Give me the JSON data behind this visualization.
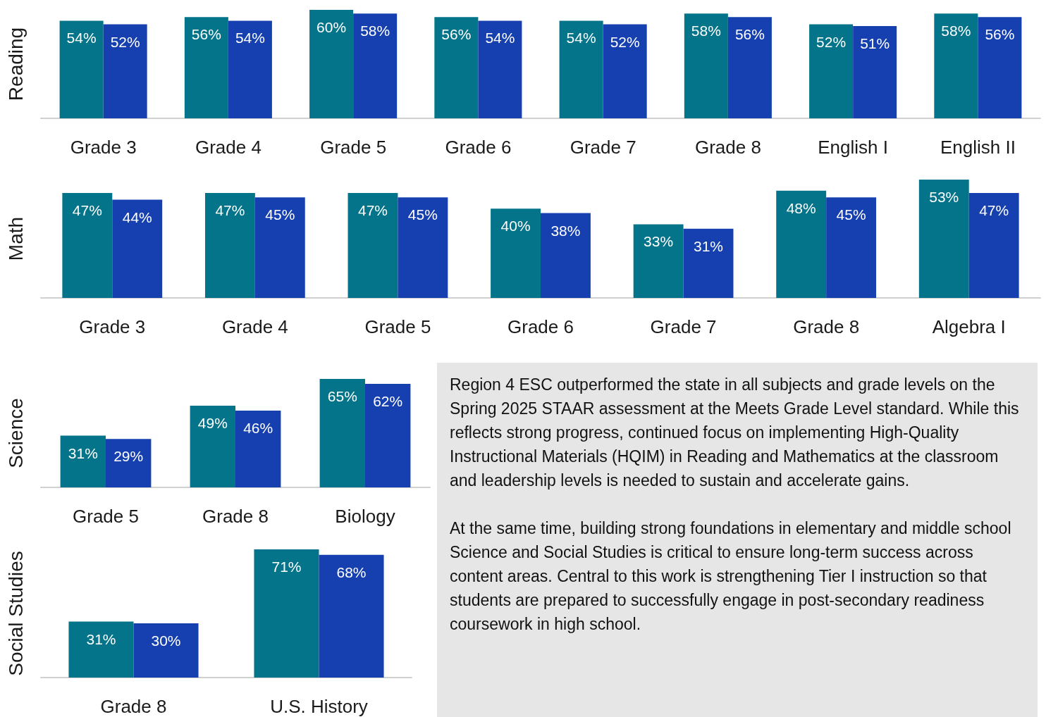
{
  "chart_data": [
    {
      "type": "bar",
      "ylabel": "Reading",
      "categories": [
        "Grade 3",
        "Grade 4",
        "Grade 5",
        "Grade 6",
        "Grade 7",
        "Grade 8",
        "English I",
        "English II"
      ],
      "tick_labels": "x",
      "series": [
        {
          "color": "#037489",
          "values": [
            54,
            56,
            60,
            56,
            54,
            58,
            52,
            58
          ],
          "value_labels": [
            "54%",
            "56%",
            "60%",
            "56%",
            "54%",
            "58%",
            "52%",
            "58%"
          ]
        },
        {
          "color": "#1640b0",
          "values": [
            52,
            54,
            58,
            54,
            52,
            56,
            51,
            56
          ],
          "value_labels": [
            "52%",
            "54%",
            "58%",
            "54%",
            "52%",
            "56%",
            "51%",
            "56%"
          ]
        }
      ]
    },
    {
      "type": "bar",
      "ylabel": "Math",
      "categories": [
        "Grade 3",
        "Grade 4",
        "Grade 5",
        "Grade 6",
        "Grade 7",
        "Grade 8",
        "Algebra I"
      ],
      "tick_labels": "x",
      "series": [
        {
          "color": "#037489",
          "values": [
            47,
            47,
            47,
            40,
            33,
            48,
            53
          ],
          "value_labels": [
            "47%",
            "47%",
            "47%",
            "40%",
            "33%",
            "48%",
            "53%"
          ]
        },
        {
          "color": "#1640b0",
          "values": [
            44,
            45,
            45,
            38,
            31,
            45,
            47
          ],
          "value_labels": [
            "44%",
            "45%",
            "45%",
            "38%",
            "31%",
            "45%",
            "47%"
          ]
        }
      ]
    },
    {
      "type": "bar",
      "ylabel": "Science",
      "categories": [
        "Grade 5",
        "Grade 8",
        "Biology"
      ],
      "tick_labels": "x",
      "series": [
        {
          "color": "#037489",
          "values": [
            31,
            49,
            65
          ],
          "value_labels": [
            "31%",
            "49%",
            "65%"
          ]
        },
        {
          "color": "#1640b0",
          "values": [
            29,
            46,
            62
          ],
          "value_labels": [
            "29%",
            "46%",
            "62%"
          ]
        }
      ]
    },
    {
      "type": "bar",
      "ylabel": "Social Studies",
      "categories": [
        "Grade 8",
        "U.S. History"
      ],
      "tick_labels": "x",
      "series": [
        {
          "color": "#037489",
          "values": [
            31,
            71
          ],
          "value_labels": [
            "31%",
            "71%"
          ]
        },
        {
          "color": "#1640b0",
          "values": [
            30,
            68
          ],
          "value_labels": [
            "30%",
            "68%"
          ]
        }
      ]
    },
    {
      "type": "other",
      "annotations": [
        "Region 4 ESC outperformed the state in all subjects and grade levels on the Spring 2025 STAAR assessment at the Meets Grade Level standard. While this reflects strong progress, continued focus on implementing High-Quality Instructional Materials (HQIM) in Reading and Mathematics at the classroom and leadership levels is needed to sustain and accelerate gains.",
        "At the same time, building strong foundations in elementary and middle school Science and Social Studies is critical to ensure long-term success across content areas. Central to this work is strengthening Tier I instruction so that students are prepared to successfully engage in post-secondary readiness coursework in high school."
      ]
    }
  ]
}
